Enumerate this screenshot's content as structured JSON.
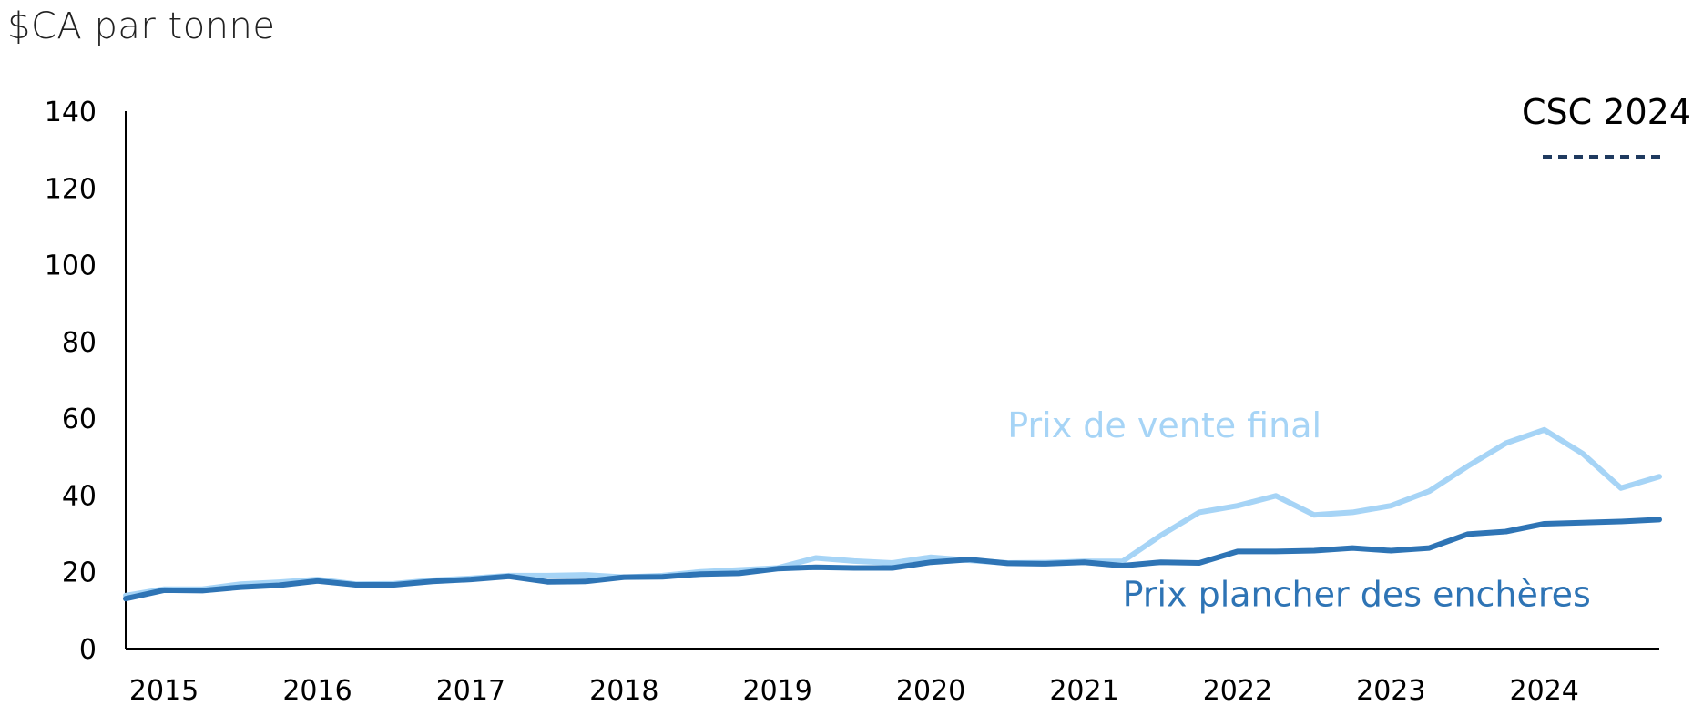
{
  "chart_data": {
    "type": "line",
    "ylabel": "$CA par tonne",
    "ylim": [
      0,
      140
    ],
    "yticks": [
      "0",
      "20",
      "40",
      "60",
      "80",
      "100",
      "120",
      "140"
    ],
    "xlim": [
      2014.75,
      2024.75
    ],
    "xticks": [
      {
        "x": 2015,
        "label": "2015"
      },
      {
        "x": 2016,
        "label": "2016"
      },
      {
        "x": 2017,
        "label": "2017"
      },
      {
        "x": 2018,
        "label": "2018"
      },
      {
        "x": 2019,
        "label": "2019"
      },
      {
        "x": 2020,
        "label": "2020"
      },
      {
        "x": 2021,
        "label": "2021"
      },
      {
        "x": 2022,
        "label": "2022"
      },
      {
        "x": 2023,
        "label": "2023"
      },
      {
        "x": 2024,
        "label": "2024"
      }
    ],
    "grid": false,
    "series": [
      {
        "name": "Prix de vente final",
        "color": "#a6d4f6",
        "x": [
          2014.75,
          2015.0,
          2015.25,
          2015.5,
          2015.75,
          2016.0,
          2016.25,
          2016.5,
          2016.75,
          2017.0,
          2017.25,
          2017.5,
          2017.75,
          2018.0,
          2018.25,
          2018.5,
          2018.75,
          2019.0,
          2019.25,
          2019.5,
          2019.75,
          2020.0,
          2020.25,
          2020.5,
          2020.75,
          2021.0,
          2021.25,
          2021.5,
          2021.75,
          2022.0,
          2022.25,
          2022.5,
          2022.75,
          2023.0,
          2023.25,
          2023.5,
          2023.75,
          2024.0,
          2024.25,
          2024.5,
          2024.75
        ],
        "values": [
          13.8,
          15.5,
          15.5,
          16.8,
          17.3,
          18.0,
          16.8,
          16.9,
          17.8,
          18.3,
          19.0,
          19.0,
          19.2,
          18.6,
          19.0,
          20.0,
          20.5,
          21.0,
          23.6,
          22.8,
          22.3,
          23.8,
          23.0,
          22.3,
          22.4,
          22.7,
          22.7,
          29.5,
          35.5,
          37.2,
          39.8,
          34.8,
          35.5,
          37.2,
          41.0,
          47.5,
          53.5,
          57.0,
          50.8,
          41.8,
          44.8
        ]
      },
      {
        "name": "Prix plancher des enchères",
        "color": "#2e74b5",
        "x": [
          2014.75,
          2015.0,
          2015.25,
          2015.5,
          2015.75,
          2016.0,
          2016.25,
          2016.5,
          2016.75,
          2017.0,
          2017.25,
          2017.5,
          2017.75,
          2018.0,
          2018.25,
          2018.5,
          2018.75,
          2019.0,
          2019.25,
          2019.5,
          2019.75,
          2020.0,
          2020.25,
          2020.5,
          2020.75,
          2021.0,
          2021.25,
          2021.5,
          2021.75,
          2022.0,
          2022.25,
          2022.5,
          2022.75,
          2023.0,
          2023.25,
          2023.5,
          2023.75,
          2024.0,
          2024.25,
          2024.5,
          2024.75
        ],
        "values": [
          13.0,
          15.2,
          15.1,
          16.0,
          16.5,
          17.6,
          16.6,
          16.6,
          17.5,
          18.0,
          18.8,
          17.4,
          17.5,
          18.6,
          18.7,
          19.4,
          19.6,
          20.8,
          21.2,
          21.0,
          21.0,
          22.5,
          23.2,
          22.2,
          22.1,
          22.5,
          21.6,
          22.5,
          22.3,
          25.3,
          25.3,
          25.5,
          26.2,
          25.5,
          26.2,
          29.8,
          30.5,
          32.5,
          32.8,
          33.1,
          33.6
        ]
      }
    ],
    "annotations": [
      {
        "text": "Prix de vente final",
        "color": "#a6d4f6",
        "x": 2020.5,
        "y": 55
      },
      {
        "text": "Prix plancher des enchères",
        "color": "#2e74b5",
        "x": 2021.25,
        "y": 11
      }
    ],
    "legend": {
      "position": "top-right",
      "items": [
        {
          "label": "CSC 2024",
          "color": "#1f3a5f",
          "style": "dashed"
        }
      ]
    }
  }
}
